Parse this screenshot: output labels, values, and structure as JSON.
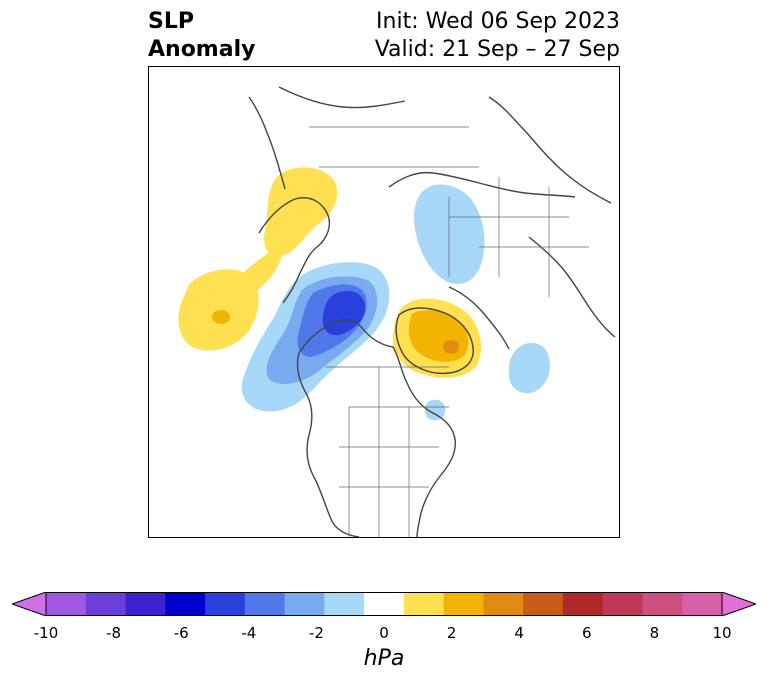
{
  "title": {
    "line1": "SLP",
    "line2": "Anomaly",
    "init": "Init: Wed 06 Sep 2023",
    "valid": "Valid: 21 Sep – 27 Sep"
  },
  "colorbar": {
    "unit": "hPa",
    "ticks": [
      "-10",
      "-8",
      "-6",
      "-4",
      "-2",
      "0",
      "2",
      "4",
      "6",
      "8",
      "10"
    ],
    "colors": [
      "#d070e8",
      "#a058e0",
      "#6c3fd8",
      "#3b22d0",
      "#0000cc",
      "#2a40dc",
      "#4f78e8",
      "#78aaf0",
      "#a8d8f8",
      "#ffffff",
      "#ffe050",
      "#f2b400",
      "#e08a10",
      "#c85a18",
      "#b02828",
      "#c03858",
      "#cc5080",
      "#d860a8",
      "#e070d8"
    ],
    "min_color": "#d070e8",
    "max_color": "#e070d8"
  },
  "map": {
    "region": "North America / Arctic polar projection",
    "anomalies": [
      {
        "label": "negative-center-canada",
        "sign": "negative",
        "max_level": "-6"
      },
      {
        "label": "negative-east-siberia",
        "sign": "negative",
        "max_level": "-2"
      },
      {
        "label": "negative-atlantic",
        "sign": "negative",
        "max_level": "-2"
      },
      {
        "label": "positive-greenland",
        "sign": "positive",
        "max_level": "4"
      },
      {
        "label": "positive-pacific",
        "sign": "positive",
        "max_level": "2"
      },
      {
        "label": "positive-kamchatka",
        "sign": "positive",
        "max_level": "2"
      }
    ]
  }
}
